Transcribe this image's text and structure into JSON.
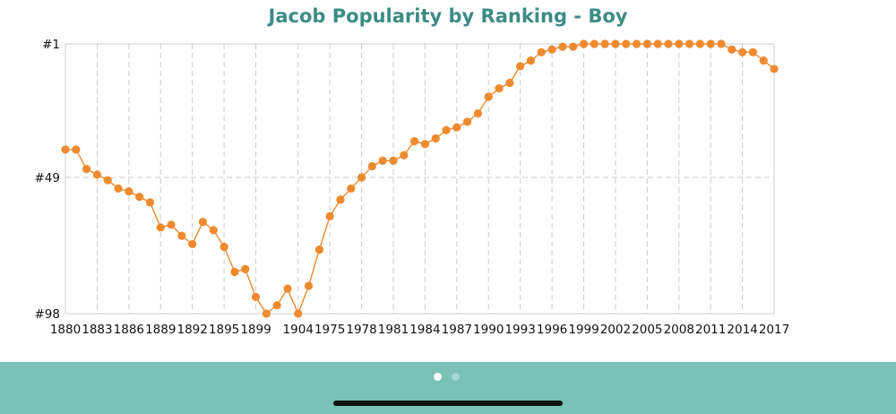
{
  "chart_data": {
    "type": "line",
    "title": "Jacob Popularity by Ranking - Boy",
    "y_ticks": [
      "#1",
      "#49",
      "#98"
    ],
    "ylim": [
      1,
      98
    ],
    "y_inverted": true,
    "grid": true,
    "x_tick_labels": [
      "1880",
      "1883",
      "1886",
      "1889",
      "1892",
      "1895",
      "1899",
      "1904",
      "1975",
      "1978",
      "1981",
      "1984",
      "1987",
      "1990",
      "1993",
      "1996",
      "1999",
      "2002",
      "2005",
      "2008",
      "2011",
      "2014",
      "2017"
    ],
    "colors": {
      "series": "#ef8a2e",
      "title": "#3d8b85",
      "grid": "#cccccc"
    },
    "series": [
      {
        "points": [
          {
            "x": "1880",
            "y": 39
          },
          {
            "x": "1881",
            "y": 39
          },
          {
            "x": "1882",
            "y": 46
          },
          {
            "x": "1883",
            "y": 48
          },
          {
            "x": "1884",
            "y": 50
          },
          {
            "x": "1885",
            "y": 53
          },
          {
            "x": "1886",
            "y": 54
          },
          {
            "x": "1887",
            "y": 56
          },
          {
            "x": "1888",
            "y": 58
          },
          {
            "x": "1889",
            "y": 67
          },
          {
            "x": "1890",
            "y": 66
          },
          {
            "x": "1891",
            "y": 70
          },
          {
            "x": "1892",
            "y": 73
          },
          {
            "x": "1893",
            "y": 65
          },
          {
            "x": "1894",
            "y": 68
          },
          {
            "x": "1895",
            "y": 74
          },
          {
            "x": "1896",
            "y": 83
          },
          {
            "x": "1897",
            "y": 82
          },
          {
            "x": "1899",
            "y": 92
          },
          {
            "x": "1901",
            "y": 98
          },
          {
            "x": "1902",
            "y": 95
          },
          {
            "x": "1903",
            "y": 89
          },
          {
            "x": "1904",
            "y": 98
          },
          {
            "x": "1905",
            "y": 88
          },
          {
            "x": "1906",
            "y": 75
          },
          {
            "x": "1975",
            "y": 63
          },
          {
            "x": "1976",
            "y": 57
          },
          {
            "x": "1977",
            "y": 53
          },
          {
            "x": "1978",
            "y": 49
          },
          {
            "x": "1979",
            "y": 45
          },
          {
            "x": "1980",
            "y": 43
          },
          {
            "x": "1981",
            "y": 43
          },
          {
            "x": "1982",
            "y": 41
          },
          {
            "x": "1983",
            "y": 36
          },
          {
            "x": "1984",
            "y": 37
          },
          {
            "x": "1985",
            "y": 35
          },
          {
            "x": "1986",
            "y": 32
          },
          {
            "x": "1987",
            "y": 31
          },
          {
            "x": "1988",
            "y": 29
          },
          {
            "x": "1989",
            "y": 26
          },
          {
            "x": "1990",
            "y": 20
          },
          {
            "x": "1991",
            "y": 17
          },
          {
            "x": "1992",
            "y": 15
          },
          {
            "x": "1993",
            "y": 9
          },
          {
            "x": "1994",
            "y": 7
          },
          {
            "x": "1995",
            "y": 4
          },
          {
            "x": "1996",
            "y": 3
          },
          {
            "x": "1997",
            "y": 2
          },
          {
            "x": "1998",
            "y": 2
          },
          {
            "x": "1999",
            "y": 1
          },
          {
            "x": "2000",
            "y": 1
          },
          {
            "x": "2001",
            "y": 1
          },
          {
            "x": "2002",
            "y": 1
          },
          {
            "x": "2003",
            "y": 1
          },
          {
            "x": "2004",
            "y": 1
          },
          {
            "x": "2005",
            "y": 1
          },
          {
            "x": "2006",
            "y": 1
          },
          {
            "x": "2007",
            "y": 1
          },
          {
            "x": "2008",
            "y": 1
          },
          {
            "x": "2009",
            "y": 1
          },
          {
            "x": "2010",
            "y": 1
          },
          {
            "x": "2011",
            "y": 1
          },
          {
            "x": "2012",
            "y": 1
          },
          {
            "x": "2013",
            "y": 3
          },
          {
            "x": "2014",
            "y": 4
          },
          {
            "x": "2015",
            "y": 4
          },
          {
            "x": "2016",
            "y": 7
          },
          {
            "x": "2017",
            "y": 10
          }
        ]
      }
    ]
  },
  "pager": {
    "page_count": 2,
    "current_page": 1
  }
}
